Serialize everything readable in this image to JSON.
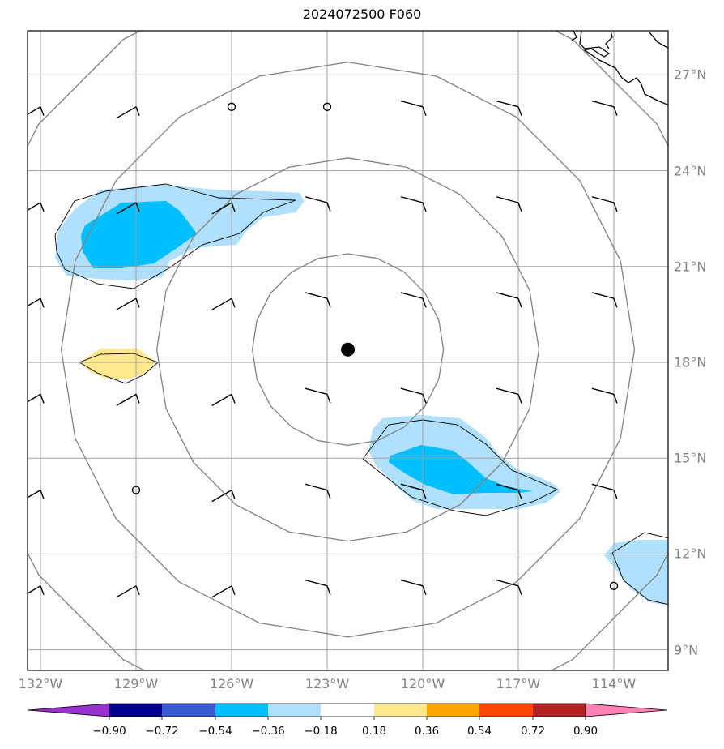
{
  "title": "2024072500 F060",
  "map": {
    "projection": "PlateCarree",
    "lon_range": [
      -132.3,
      -112.3
    ],
    "lat_range": [
      8.5,
      28.3
    ],
    "center_marker": {
      "lon": -122.35,
      "lat": 18.4
    },
    "lon_ticks": [
      {
        "value": -132,
        "label": "132°W"
      },
      {
        "value": -129,
        "label": "129°W"
      },
      {
        "value": -126,
        "label": "126°W"
      },
      {
        "value": -123,
        "label": "123°W"
      },
      {
        "value": -120,
        "label": "120°W"
      },
      {
        "value": -117,
        "label": "117°W"
      },
      {
        "value": -114,
        "label": "114°W"
      }
    ],
    "lat_ticks": [
      {
        "value": 27,
        "label": "27°N"
      },
      {
        "value": 24,
        "label": "24°N"
      },
      {
        "value": 21,
        "label": "21°N"
      },
      {
        "value": 18,
        "label": "18°N"
      },
      {
        "value": 15,
        "label": "15°N"
      },
      {
        "value": 12,
        "label": "12°N"
      },
      {
        "value": 9,
        "label": "9°N"
      }
    ],
    "range_rings_deg": [
      3,
      6,
      9,
      12
    ],
    "gridline_color": "#a0a0a0",
    "ring_color": "#808080"
  },
  "colorbar": {
    "ticks": [
      "−0.90",
      "−0.72",
      "−0.54",
      "−0.36",
      "−0.18",
      "0.18",
      "0.36",
      "0.54",
      "0.72",
      "0.90"
    ],
    "colors": [
      "#9932cc",
      "#00008b",
      "#3a5bd0",
      "#00bfff",
      "#b0e0fb",
      "#ffffff",
      "#ffe88e",
      "#ffa500",
      "#ff4500",
      "#b22222",
      "#ff82b4"
    ]
  },
  "filled_regions": [
    {
      "name": "negative-anomaly-northwest",
      "level": "-0.36 to -0.18",
      "color": "#b0e0fb"
    },
    {
      "name": "negative-anomaly-northwest-core",
      "level": "-0.54 to -0.36",
      "color": "#00bfff"
    },
    {
      "name": "positive-anomaly-west",
      "level": "0.18 to 0.36",
      "color": "#ffe88e"
    },
    {
      "name": "negative-anomaly-southeast",
      "level": "-0.36 to -0.18",
      "color": "#b0e0fb"
    },
    {
      "name": "negative-anomaly-southeast-core",
      "level": "-0.54 to -0.36",
      "color": "#00bfff"
    },
    {
      "name": "negative-anomaly-east-edge",
      "level": "-0.36 to -0.18",
      "color": "#b0e0fb"
    }
  ],
  "wind_barbs": [
    {
      "lon": -132,
      "lat": 26,
      "type": "barb"
    },
    {
      "lon": -129,
      "lat": 26,
      "type": "barb"
    },
    {
      "lon": -126,
      "lat": 26,
      "type": "calm"
    },
    {
      "lon": -123,
      "lat": 26,
      "type": "calm"
    },
    {
      "lon": -120,
      "lat": 26,
      "type": "barb"
    },
    {
      "lon": -117,
      "lat": 26,
      "type": "barb"
    },
    {
      "lon": -114,
      "lat": 26,
      "type": "barb"
    },
    {
      "lon": -132,
      "lat": 23,
      "type": "barb"
    },
    {
      "lon": -129,
      "lat": 23,
      "type": "barb"
    },
    {
      "lon": -126,
      "lat": 23,
      "type": "barb"
    },
    {
      "lon": -123,
      "lat": 23,
      "type": "barb"
    },
    {
      "lon": -120,
      "lat": 23,
      "type": "barb"
    },
    {
      "lon": -117,
      "lat": 23,
      "type": "barb"
    },
    {
      "lon": -114,
      "lat": 23,
      "type": "barb"
    },
    {
      "lon": -132,
      "lat": 20,
      "type": "barb"
    },
    {
      "lon": -129,
      "lat": 20,
      "type": "barb"
    },
    {
      "lon": -126,
      "lat": 20,
      "type": "barb"
    },
    {
      "lon": -123,
      "lat": 20,
      "type": "barb"
    },
    {
      "lon": -120,
      "lat": 20,
      "type": "barb"
    },
    {
      "lon": -117,
      "lat": 20,
      "type": "barb"
    },
    {
      "lon": -114,
      "lat": 20,
      "type": "barb"
    },
    {
      "lon": -132,
      "lat": 17,
      "type": "barb"
    },
    {
      "lon": -129,
      "lat": 17,
      "type": "barb"
    },
    {
      "lon": -126,
      "lat": 17,
      "type": "barb"
    },
    {
      "lon": -123,
      "lat": 17,
      "type": "barb"
    },
    {
      "lon": -120,
      "lat": 17,
      "type": "barb"
    },
    {
      "lon": -117,
      "lat": 17,
      "type": "barb"
    },
    {
      "lon": -114,
      "lat": 17,
      "type": "barb"
    },
    {
      "lon": -132,
      "lat": 14,
      "type": "barb"
    },
    {
      "lon": -129,
      "lat": 14,
      "type": "calm"
    },
    {
      "lon": -126,
      "lat": 14,
      "type": "barb"
    },
    {
      "lon": -123,
      "lat": 14,
      "type": "barb"
    },
    {
      "lon": -120,
      "lat": 14,
      "type": "barb"
    },
    {
      "lon": -117,
      "lat": 14,
      "type": "barb"
    },
    {
      "lon": -114,
      "lat": 14,
      "type": "barb"
    },
    {
      "lon": -132,
      "lat": 11,
      "type": "barb"
    },
    {
      "lon": -129,
      "lat": 11,
      "type": "barb"
    },
    {
      "lon": -126,
      "lat": 11,
      "type": "barb"
    },
    {
      "lon": -123,
      "lat": 11,
      "type": "barb"
    },
    {
      "lon": -120,
      "lat": 11,
      "type": "barb"
    },
    {
      "lon": -117,
      "lat": 11,
      "type": "barb"
    },
    {
      "lon": -114,
      "lat": 11,
      "type": "calm"
    }
  ]
}
